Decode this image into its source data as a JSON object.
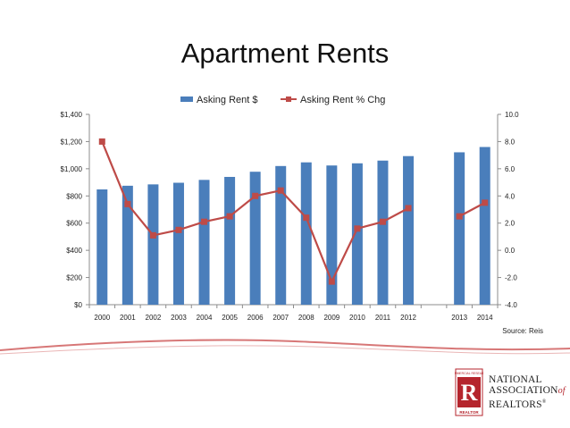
{
  "slide": {
    "title": "Apartment Rents",
    "source": "Source: Reis"
  },
  "logo": {
    "line1": "NATIONAL",
    "line2": "ASSOCIATION",
    "of": "of",
    "line3": "REALTORS",
    "registered": "®",
    "mark_letter": "R",
    "mark_top_text": "COMMERCIAL RESEARCH",
    "mark_bottom_text": "REALTOR",
    "brand_color": "#b5252d"
  },
  "chart_data": {
    "type": "bar",
    "title": "",
    "categories": [
      "2000",
      "2001",
      "2002",
      "2003",
      "2004",
      "2005",
      "2006",
      "2007",
      "2008",
      "2009",
      "2010",
      "2011",
      "2012",
      "",
      "2013",
      "2014"
    ],
    "series": [
      {
        "name": "Asking Rent $",
        "type": "bar",
        "axis": "left",
        "color": "#4a7ebb",
        "values": [
          848,
          875,
          885,
          897,
          918,
          940,
          978,
          1020,
          1047,
          1024,
          1040,
          1060,
          1093,
          null,
          1121,
          1160
        ]
      },
      {
        "name": "Asking Rent % Chg",
        "type": "line",
        "axis": "right",
        "color": "#be4b48",
        "values": [
          8.0,
          3.4,
          1.1,
          1.5,
          2.1,
          2.5,
          4.0,
          4.4,
          2.4,
          -2.3,
          1.6,
          2.1,
          3.1,
          null,
          2.5,
          3.5
        ]
      }
    ],
    "y_left": {
      "ylim": [
        0,
        1400
      ],
      "ticks": [
        0,
        200,
        400,
        600,
        800,
        1000,
        1200,
        1400
      ],
      "tick_labels": [
        "$0",
        "$200",
        "$400",
        "$600",
        "$800",
        "$1,000",
        "$1,200",
        "$1,400"
      ]
    },
    "y_right": {
      "ylim": [
        -4,
        10
      ],
      "ticks": [
        -4,
        -2,
        0,
        2,
        4,
        6,
        8,
        10
      ],
      "tick_labels": [
        "-4.0",
        "-2.0",
        "0.0",
        "2.0",
        "4.0",
        "6.0",
        "8.0",
        "10.0"
      ]
    },
    "grid": false,
    "legend": "top-center"
  }
}
